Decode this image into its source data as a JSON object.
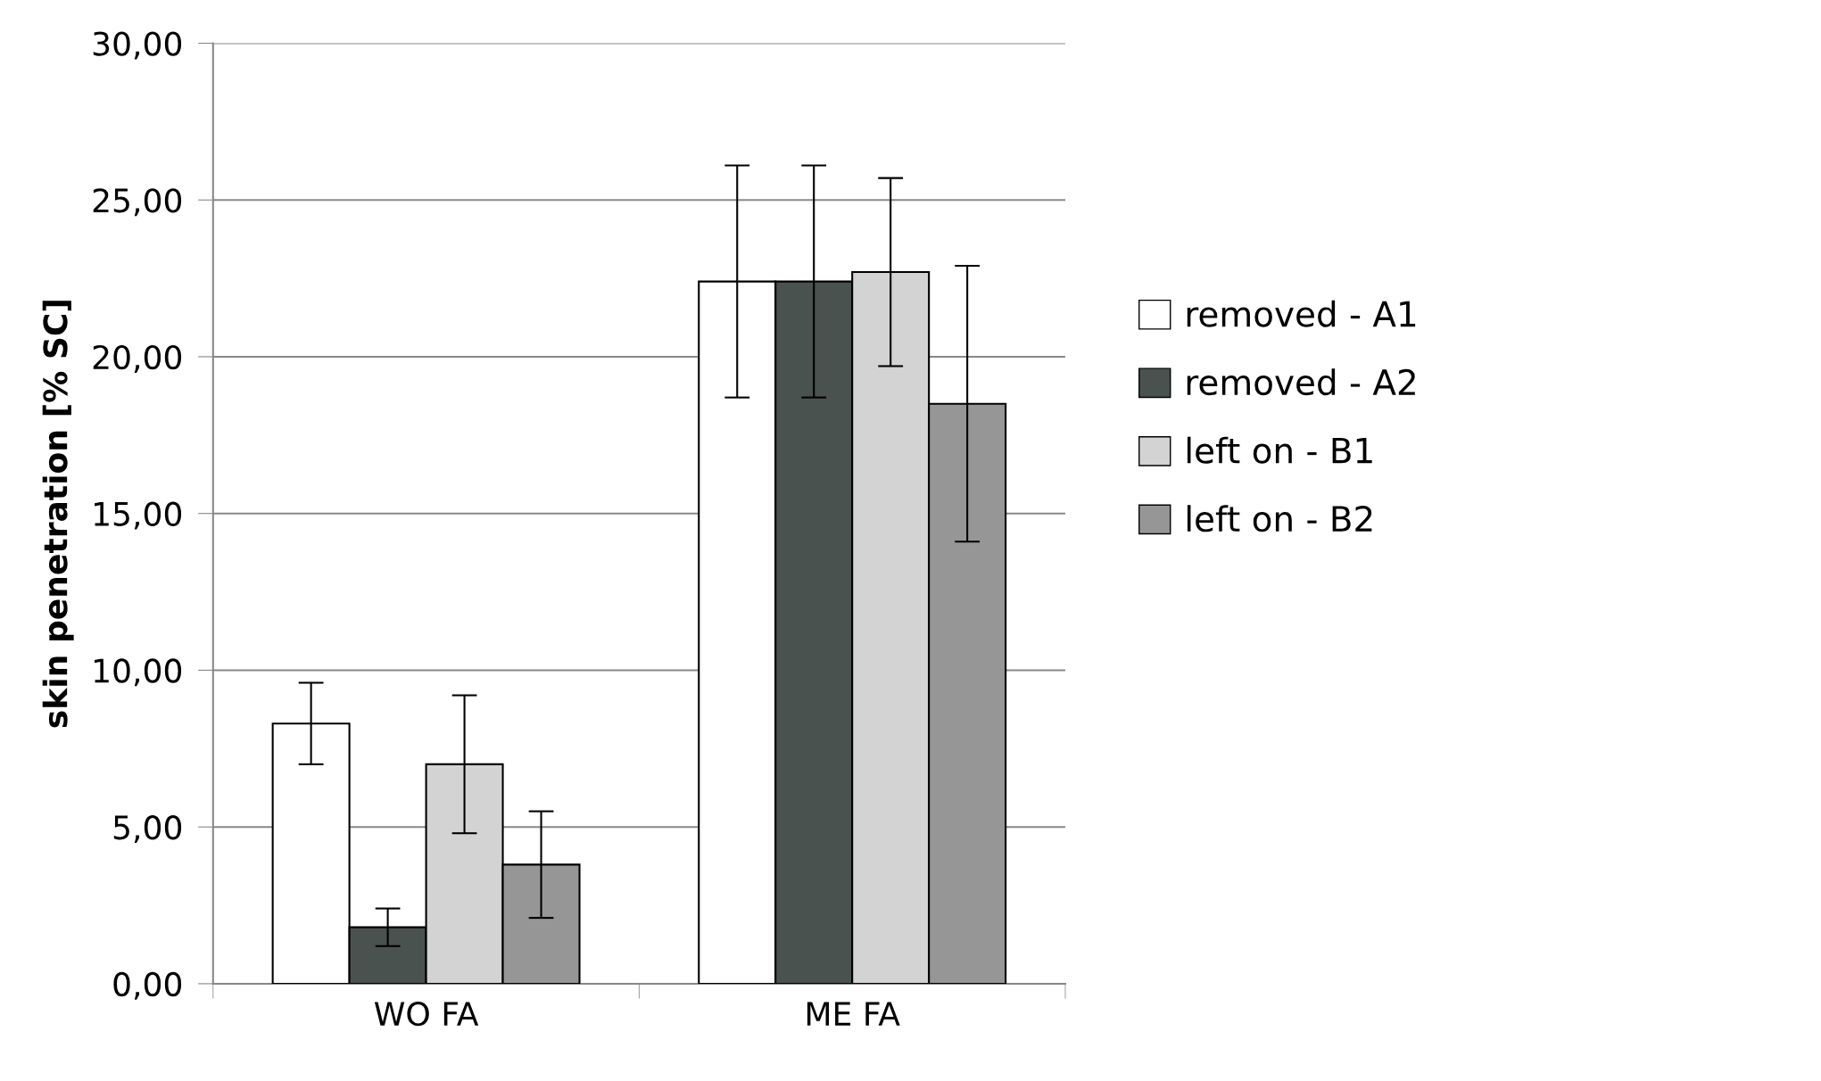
{
  "chart_data": {
    "type": "bar",
    "ylabel": "skin penetration [% SC]",
    "categories": [
      "WO FA",
      "ME FA"
    ],
    "series": [
      {
        "name": "removed - A1",
        "color": "#ffffff",
        "values": [
          8.3,
          22.4
        ],
        "errors": [
          1.3,
          3.7
        ]
      },
      {
        "name": "removed - A2",
        "color": "#4a5250",
        "values": [
          1.8,
          22.4
        ],
        "errors": [
          0.6,
          3.7
        ]
      },
      {
        "name": "left on - B1",
        "color": "#d3d3d3",
        "values": [
          7.0,
          22.7
        ],
        "errors": [
          2.2,
          3.0
        ]
      },
      {
        "name": "left on - B2",
        "color": "#969696",
        "values": [
          3.8,
          18.5
        ],
        "errors": [
          1.7,
          4.4
        ]
      }
    ],
    "ylim": [
      0,
      30
    ],
    "yticks": [
      {
        "value": 0,
        "label": "0,00"
      },
      {
        "value": 5,
        "label": "5,00"
      },
      {
        "value": 10,
        "label": "10,00"
      },
      {
        "value": 15,
        "label": "15,00"
      },
      {
        "value": 20,
        "label": "20,00"
      },
      {
        "value": 25,
        "label": "25,00"
      },
      {
        "value": 30,
        "label": "30,00"
      }
    ],
    "grid": "y",
    "legend": "right"
  }
}
